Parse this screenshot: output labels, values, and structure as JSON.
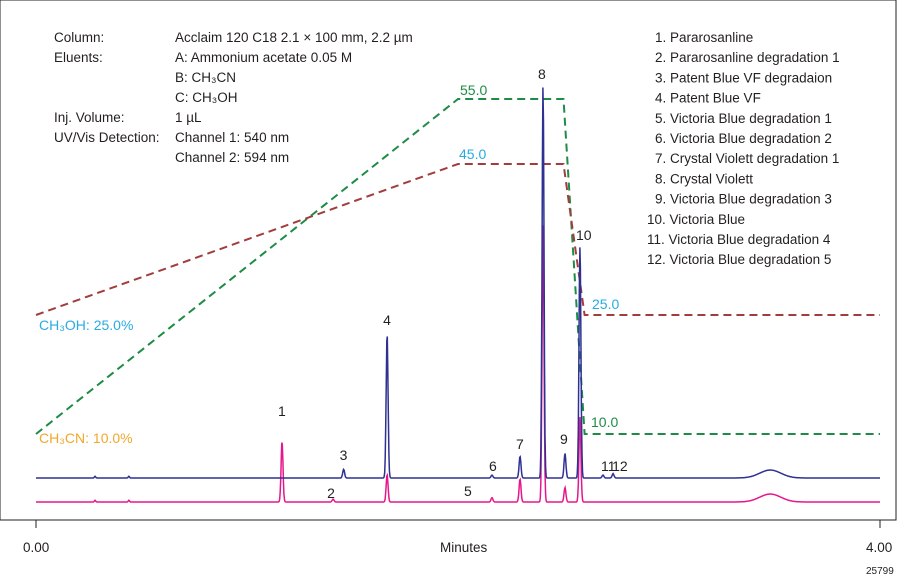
{
  "chart_data": {
    "type": "line",
    "xlabel": "Minutes",
    "xlim": [
      0,
      4
    ],
    "x_ticks": [
      "0.00",
      "4.00"
    ],
    "figure_id": "25799",
    "conditions": [
      {
        "label": "Column:",
        "value": "Acclaim 120 C18 2.1 × 100 mm, 2.2 µm"
      },
      {
        "label": "Eluents:",
        "value": "A: Ammonium acetate 0.05 M"
      },
      {
        "label": "",
        "value": "B: CH₃CN"
      },
      {
        "label": "",
        "value": "C: CH₃OH"
      },
      {
        "label": "Inj. Volume:",
        "value": "1 µL"
      },
      {
        "label": "UV/Vis Detection:",
        "value": "Channel 1: 540 nm"
      },
      {
        "label": "",
        "value": "Channel 2: 594 nm"
      }
    ],
    "peak_legend": [
      "1. Pararosanline",
      "2. Pararosanline degradation 1",
      "3. Patent Blue VF degradaion",
      "4. Patent Blue VF",
      "5. Victoria Blue degradation 1",
      "6. Victoria Blue degradation 2",
      "7. Crystal Violett degradation 1",
      "8. Crystal Violett",
      "9. Victoria Blue degradation 3",
      "10. Victoria Blue",
      "11. Victoria Blue degradation 4",
      "12. Victoria Blue degradation 5"
    ],
    "gradient_labels": {
      "ch3oh_start": "CH₃OH: 25.0%",
      "ch3cn_start": "CH₃CN: 10.0%",
      "ch3oh_plateau": "45.0",
      "ch3cn_plateau": "55.0",
      "ch3oh_end": "25.0",
      "ch3cn_end": "10.0"
    },
    "gradient_series": [
      {
        "name": "CH₃CN",
        "color": "#1e8c46",
        "points": [
          [
            0,
            10
          ],
          [
            2.0,
            55
          ],
          [
            2.5,
            55
          ],
          [
            2.6,
            10
          ],
          [
            4.0,
            10
          ]
        ]
      },
      {
        "name": "CH₃OH",
        "color": "#a23d3d",
        "points": [
          [
            0,
            25
          ],
          [
            2.0,
            45
          ],
          [
            2.5,
            45
          ],
          [
            2.6,
            25
          ],
          [
            4.0,
            25
          ]
        ]
      }
    ],
    "peaks": [
      {
        "num": "1",
        "rt": 1.166,
        "blue": 0.0,
        "magenta": 0.42
      },
      {
        "num": "2",
        "rt": 1.408,
        "blue": 0.0,
        "magenta": 0.02
      },
      {
        "num": "3",
        "rt": 1.458,
        "blue": 0.06,
        "magenta": 0.0
      },
      {
        "num": "4",
        "rt": 1.664,
        "blue": 1.0,
        "magenta": 0.19
      },
      {
        "num": "5",
        "rt": 2.019,
        "blue": 0.0,
        "magenta": 0.0
      },
      {
        "num": "6",
        "rt": 2.161,
        "blue": 0.02,
        "magenta": 0.03
      },
      {
        "num": "7",
        "rt": 2.294,
        "blue": 0.15,
        "magenta": 0.16
      },
      {
        "num": "8",
        "rt": 2.403,
        "blue": 2.71,
        "magenta": 1.92
      },
      {
        "num": "9",
        "rt": 2.507,
        "blue": 0.17,
        "magenta": 0.1
      },
      {
        "num": "10",
        "rt": 2.578,
        "blue": 1.6,
        "magenta": 0.59
      },
      {
        "num": "11",
        "rt": 2.687,
        "blue": 0.02,
        "magenta": 0.0
      },
      {
        "num": "12",
        "rt": 2.735,
        "blue": 0.03,
        "magenta": 0.0
      }
    ],
    "colors": {
      "channel_blue": "#2e3192",
      "channel_magenta": "#e6168c",
      "gradient_label": "#29abe2",
      "ch3cn_label": "#f0a82a",
      "ch3cn_end_label": "#1e8c46",
      "text": "#231f20"
    }
  }
}
